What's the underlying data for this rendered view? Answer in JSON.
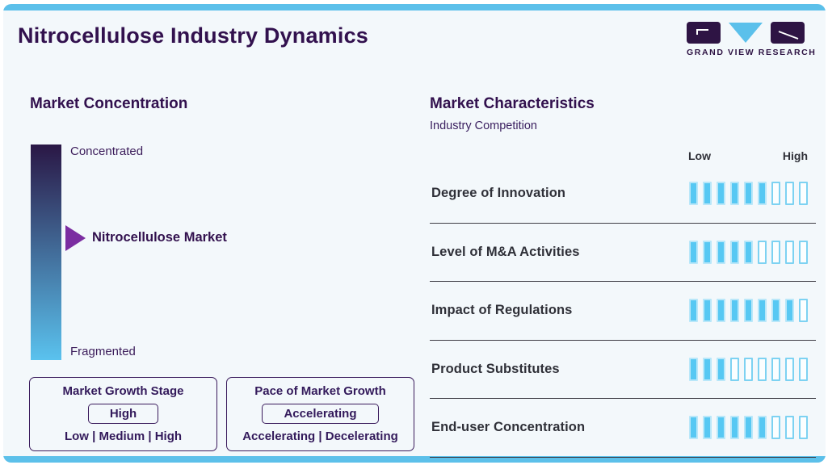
{
  "page": {
    "title": "Nitrocellulose Industry Dynamics"
  },
  "logo": {
    "text": "GRAND VIEW RESEARCH"
  },
  "market_concentration": {
    "title": "Market Concentration",
    "top_label": "Concentrated",
    "bottom_label": "Fragmented",
    "pointer_label": "Nitrocellulose Market"
  },
  "growth_boxes": [
    {
      "title": "Market Growth Stage",
      "selected": "High",
      "options": "Low | Medium | High"
    },
    {
      "title": "Pace of Market Growth",
      "selected": "Accelerating",
      "options": "Accelerating | Decelerating"
    }
  ],
  "market_characteristics": {
    "title": "Market Characteristics",
    "subtitle": "Industry Competition",
    "scale_low": "Low",
    "scale_high": "High",
    "rows": [
      {
        "label": "Degree of Innovation",
        "filled": 6,
        "total": 9
      },
      {
        "label": "Level of M&A Activities",
        "filled": 5,
        "total": 9
      },
      {
        "label": "Impact of Regulations",
        "filled": 8,
        "total": 9
      },
      {
        "label": "Product Substitutes",
        "filled": 3,
        "total": 9
      },
      {
        "label": "End-user Concentration",
        "filled": 6,
        "total": 9
      }
    ]
  },
  "chart_data": {
    "type": "bar",
    "title": "Market Characteristics",
    "subtitle": "Industry Competition",
    "categories": [
      "Degree of Innovation",
      "Level of M&A Activities",
      "Impact of Regulations",
      "Product Substitutes",
      "End-user Concentration"
    ],
    "values": [
      6,
      5,
      8,
      3,
      6
    ],
    "value_max": 9,
    "scale_labels": [
      "Low",
      "High"
    ],
    "concentration_scale": {
      "top": "Concentrated",
      "bottom": "Fragmented",
      "pointer": "Nitrocellulose Market"
    },
    "market_growth_stage": "High",
    "pace_of_market_growth": "Accelerating"
  },
  "colors": {
    "accent_purple": "#32114e",
    "arrow_purple": "#7b2da1",
    "strip_blue": "#5cc0ea",
    "bar_blue": "#57c8f3",
    "gradient_top": "#2a1745",
    "gradient_bottom": "#5ac2ee",
    "divider": "#3e3d45",
    "text_dark": "#2f3038"
  }
}
